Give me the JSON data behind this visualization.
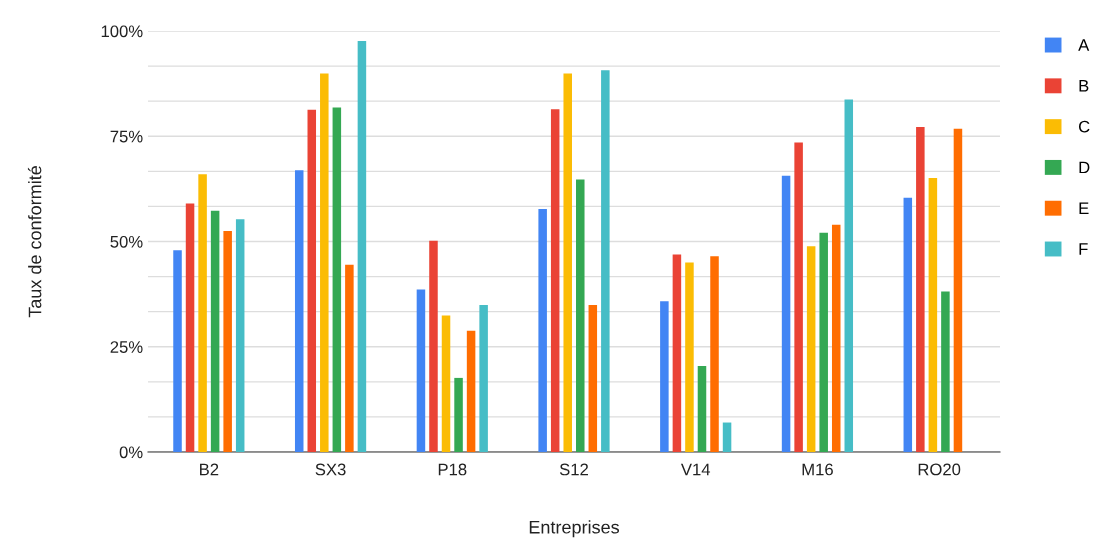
{
  "chart_data": {
    "type": "bar",
    "xlabel": "Entreprises",
    "ylabel": "Taux de conformité",
    "categories": [
      "B2",
      "SX3",
      "P18",
      "S12",
      "V14",
      "M16",
      "RO20"
    ],
    "series": [
      {
        "name": "A",
        "color": "#4285f4",
        "values": [
          47.9,
          66.9,
          38.6,
          57.7,
          35.8,
          65.6,
          60.4
        ]
      },
      {
        "name": "B",
        "color": "#ea4335",
        "values": [
          59.0,
          81.3,
          50.2,
          81.4,
          46.9,
          73.5,
          77.2
        ]
      },
      {
        "name": "C",
        "color": "#fbbc04",
        "values": [
          66.0,
          89.9,
          32.4,
          89.9,
          45.0,
          48.9,
          65.1
        ]
      },
      {
        "name": "D",
        "color": "#34a853",
        "values": [
          57.3,
          81.8,
          17.6,
          64.7,
          20.4,
          52.1,
          38.1
        ]
      },
      {
        "name": "E",
        "color": "#ff6d01",
        "values": [
          52.5,
          44.5,
          28.8,
          34.9,
          46.5,
          54.0,
          76.8
        ]
      },
      {
        "name": "F",
        "color": "#46bdc6",
        "values": [
          55.3,
          97.6,
          34.9,
          90.7,
          7.0,
          83.7,
          null
        ]
      }
    ],
    "ylim": [
      0,
      100
    ],
    "yticks": [
      {
        "value": 0,
        "label": "0%"
      },
      {
        "value": 8.333,
        "label": null
      },
      {
        "value": 16.667,
        "label": null
      },
      {
        "value": 25,
        "label": "25%"
      },
      {
        "value": 33.333,
        "label": null
      },
      {
        "value": 41.667,
        "label": null
      },
      {
        "value": 50,
        "label": "50%"
      },
      {
        "value": 58.333,
        "label": null
      },
      {
        "value": 66.667,
        "label": null
      },
      {
        "value": 75,
        "label": "75%"
      },
      {
        "value": 83.333,
        "label": null
      },
      {
        "value": 91.667,
        "label": null
      },
      {
        "value": 100,
        "label": "100%"
      }
    ],
    "grid": "y",
    "legend": "right"
  }
}
